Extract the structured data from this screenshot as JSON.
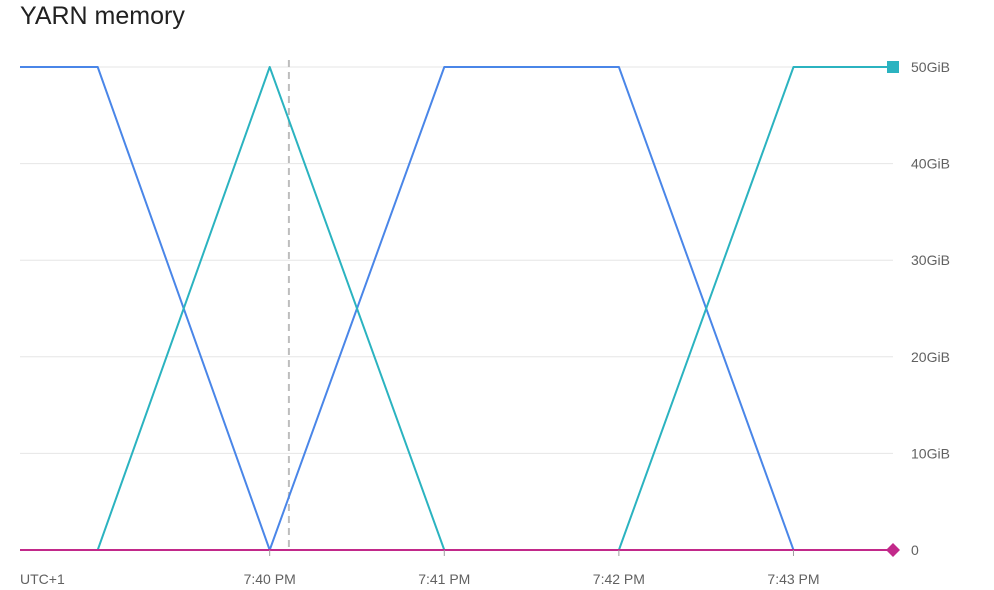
{
  "chart_data": {
    "type": "line",
    "title": "YARN memory",
    "timezone_label": "UTC+1",
    "x_ticks": [
      "7:40 PM",
      "7:41 PM",
      "7:42 PM",
      "7:43 PM"
    ],
    "x_tick_values": [
      0,
      1,
      2,
      3
    ],
    "xlim": [
      -1.43,
      3.57
    ],
    "y_ticks": [
      "0",
      "10GiB",
      "20GiB",
      "30GiB",
      "40GiB",
      "50GiB"
    ],
    "y_tick_values": [
      0,
      10,
      20,
      30,
      40,
      50
    ],
    "ylim": [
      0,
      50
    ],
    "grid": true,
    "cursor_x": 0.11,
    "series": [
      {
        "color": "#4a86e8",
        "x": [
          -1.43,
          -0.985,
          0,
          1,
          2,
          3
        ],
        "y": [
          50,
          50,
          0,
          50,
          50,
          0
        ]
      },
      {
        "color": "#2bb3c0",
        "marker": "square",
        "x": [
          -0.985,
          0,
          1,
          2,
          3,
          3.57
        ],
        "y": [
          0,
          50,
          0,
          0,
          50,
          50
        ]
      },
      {
        "color": "#c2298a",
        "marker": "diamond",
        "x": [
          -1.43,
          3.57
        ],
        "y": [
          0,
          0
        ]
      }
    ]
  }
}
